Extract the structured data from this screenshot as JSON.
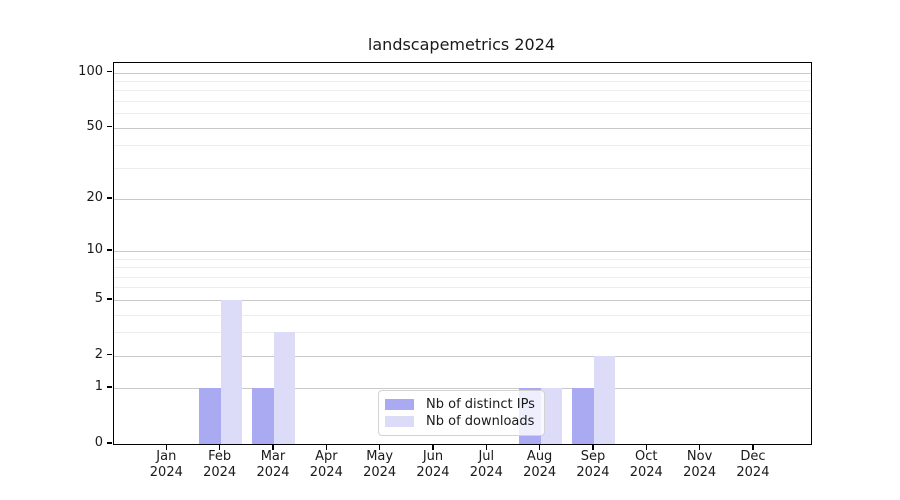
{
  "title": "landscapemetrics 2024",
  "chart_data": {
    "type": "bar",
    "scale": "log1p",
    "title": "landscapemetrics 2024",
    "xlabel": "",
    "ylabel": "",
    "categories": [
      "Jan",
      "Feb",
      "Mar",
      "Apr",
      "May",
      "Jun",
      "Jul",
      "Aug",
      "Sep",
      "Oct",
      "Nov",
      "Dec"
    ],
    "category_year": "2024",
    "series": [
      {
        "name": "Nb of distinct IPs",
        "color": "#aaaaf2",
        "values": [
          0,
          1,
          1,
          0,
          0,
          0,
          0,
          1,
          1,
          0,
          0,
          0
        ]
      },
      {
        "name": "Nb of downloads",
        "color": "#dcdcf8",
        "values": [
          0,
          5,
          3,
          0,
          0,
          0,
          0,
          1,
          2,
          0,
          0,
          0
        ]
      }
    ],
    "yticks": [
      0,
      1,
      2,
      5,
      10,
      20,
      50,
      100
    ],
    "minor_ytick_factors": [
      3,
      4,
      6,
      7,
      8,
      9
    ],
    "ylim": [
      0,
      113
    ],
    "grid": true,
    "legend_position": "lower center",
    "axis_color": "#000000",
    "major_grid_color": "#c9c9c9",
    "minor_grid_color": "#ededed"
  }
}
